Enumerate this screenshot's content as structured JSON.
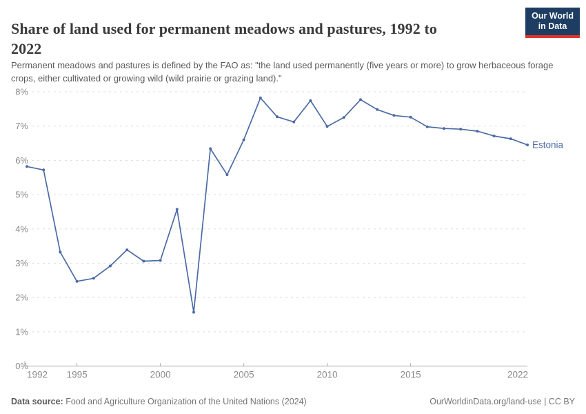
{
  "header": {
    "title": "Share of land used for permanent meadows and pastures, 1992 to 2022",
    "subtitle": "Permanent meadows and pastures is defined by the FAO as: \"the land used permanently (five years or more) to grow herbaceous forage crops, either cultivated or growing wild (wild prairie or grazing land).\"",
    "logo": {
      "line1": "Our World",
      "line2": "in Data",
      "bg_color": "#1d3d63",
      "accent_color": "#e0352b"
    }
  },
  "chart_data": {
    "type": "line",
    "title": "Share of land used for permanent meadows and pastures, 1992 to 2022",
    "x": [
      1992,
      1993,
      1994,
      1995,
      1996,
      1997,
      1998,
      1999,
      2000,
      2001,
      2002,
      2003,
      2004,
      2005,
      2006,
      2007,
      2008,
      2009,
      2010,
      2011,
      2012,
      2013,
      2014,
      2015,
      2016,
      2017,
      2018,
      2019,
      2020,
      2021,
      2022
    ],
    "series": [
      {
        "name": "Estonia",
        "color": "#4c6aa5",
        "values": [
          5.82,
          5.72,
          3.32,
          2.47,
          2.56,
          2.92,
          3.39,
          3.06,
          3.08,
          4.57,
          1.57,
          6.34,
          5.58,
          6.6,
          7.82,
          7.27,
          7.12,
          7.74,
          6.99,
          7.25,
          7.77,
          7.48,
          7.31,
          7.26,
          6.98,
          6.93,
          6.91,
          6.85,
          6.71,
          6.63,
          6.45
        ]
      }
    ],
    "xlabel": "",
    "ylabel": "",
    "xlim": [
      1992,
      2022
    ],
    "ylim": [
      0,
      8
    ],
    "x_ticks": [
      1992,
      1995,
      2000,
      2005,
      2010,
      2015,
      2022
    ],
    "y_ticks": [
      0,
      1,
      2,
      3,
      4,
      5,
      6,
      7,
      8
    ],
    "y_tick_suffix": "%",
    "grid": "horizontal-dashed",
    "gridline_color": "#dcdcdc",
    "axis_color": "#a3a3a3",
    "tick_label_color": "#8a8a8a",
    "legend_position": "end-of-line-label"
  },
  "footer": {
    "source_label": "Data source:",
    "source_text": " Food and Agriculture Organization of the United Nations (2024)",
    "rights": "OurWorldinData.org/land-use | CC BY"
  }
}
